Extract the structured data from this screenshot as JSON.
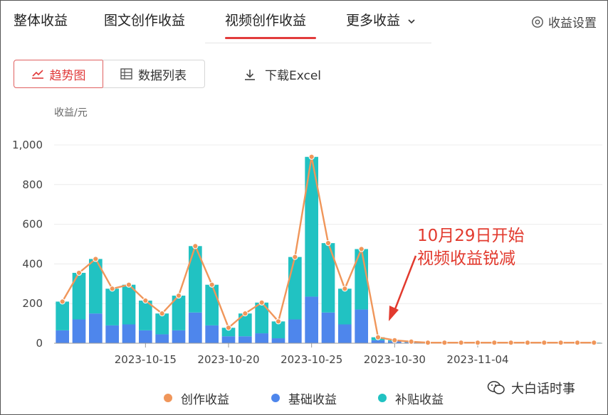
{
  "tabs": [
    {
      "label": "整体收益"
    },
    {
      "label": "图文创作收益"
    },
    {
      "label": "视频创作收益"
    },
    {
      "label": "更多收益"
    }
  ],
  "active_tab": 2,
  "settings_label": "收益设置",
  "view_toggle": {
    "trend_label": "趋势图",
    "list_label": "数据列表"
  },
  "download_label": "下载Excel",
  "annotation": {
    "line1": "10月29日开始",
    "line2": "视频收益锐减"
  },
  "watermark": "大白话时事",
  "colors": {
    "accent": "#e23b3b",
    "creation": "#f0965a",
    "basic": "#4e86ec",
    "subsidy": "#21c2c2"
  },
  "chart_data": {
    "type": "bar",
    "ylabel": "收益/元",
    "ylim": [
      0,
      1000
    ],
    "yticks": [
      0,
      200,
      400,
      600,
      800,
      1000
    ],
    "ytick_labels": [
      "0",
      "200",
      "400",
      "600",
      "800",
      "1,000"
    ],
    "categories": [
      "2023-10-10",
      "2023-10-11",
      "2023-10-12",
      "2023-10-13",
      "2023-10-14",
      "2023-10-15",
      "2023-10-16",
      "2023-10-17",
      "2023-10-18",
      "2023-10-19",
      "2023-10-20",
      "2023-10-21",
      "2023-10-22",
      "2023-10-23",
      "2023-10-24",
      "2023-10-25",
      "2023-10-26",
      "2023-10-27",
      "2023-10-28",
      "2023-10-29",
      "2023-10-30",
      "2023-10-31",
      "2023-11-01",
      "2023-11-02",
      "2023-11-03",
      "2023-11-04",
      "2023-11-05",
      "2023-11-06",
      "2023-11-07",
      "2023-11-08",
      "2023-11-09",
      "2023-11-10",
      "2023-11-11"
    ],
    "xtick_labels": [
      {
        "index": 5,
        "label": "2023-10-15"
      },
      {
        "index": 10,
        "label": "2023-10-20"
      },
      {
        "index": 15,
        "label": "2023-10-25"
      },
      {
        "index": 20,
        "label": "2023-10-30"
      },
      {
        "index": 25,
        "label": "2023-11-04"
      }
    ],
    "series": [
      {
        "name": "基础收益",
        "kind": "stacked-bar",
        "values": [
          65,
          120,
          150,
          90,
          95,
          65,
          45,
          65,
          155,
          90,
          35,
          35,
          50,
          25,
          120,
          235,
          155,
          95,
          170,
          15,
          10,
          5,
          2,
          2,
          2,
          2,
          2,
          2,
          2,
          2,
          2,
          2,
          2
        ]
      },
      {
        "name": "补贴收益",
        "kind": "stacked-bar",
        "values": [
          145,
          235,
          275,
          185,
          200,
          150,
          105,
          175,
          335,
          205,
          43,
          115,
          155,
          85,
          315,
          705,
          350,
          180,
          305,
          15,
          5,
          3,
          1,
          1,
          1,
          1,
          1,
          1,
          1,
          1,
          1,
          1,
          1
        ]
      },
      {
        "name": "创作收益",
        "kind": "line",
        "values": [
          210,
          355,
          425,
          275,
          295,
          215,
          150,
          240,
          490,
          295,
          78,
          150,
          205,
          110,
          435,
          940,
          505,
          275,
          475,
          30,
          15,
          8,
          3,
          3,
          3,
          3,
          3,
          3,
          3,
          3,
          3,
          3,
          3
        ]
      }
    ],
    "legend_order": [
      "创作收益",
      "基础收益",
      "补贴收益"
    ],
    "legend_position": "bottom",
    "grid": true
  }
}
